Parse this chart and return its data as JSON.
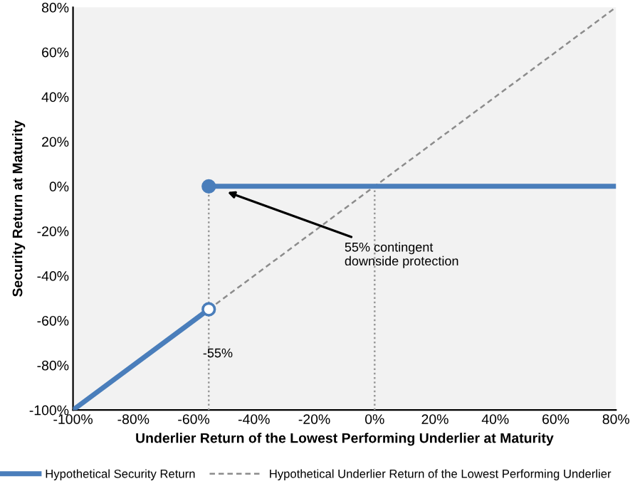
{
  "chart_data": {
    "type": "line",
    "xlabel": "Underlier Return of the Lowest Performing Underlier at Maturity",
    "ylabel": "Security Return at Maturity",
    "xlim": [
      -100,
      80
    ],
    "xticks": [
      {
        "value": -100,
        "label": "-100%"
      },
      {
        "value": -80,
        "label": "-80%"
      },
      {
        "value": -60,
        "label": "-60%"
      },
      {
        "value": -40,
        "label": "-40%"
      },
      {
        "value": -20,
        "label": "-20%"
      },
      {
        "value": 0,
        "label": "0%"
      },
      {
        "value": 20,
        "label": "20%"
      },
      {
        "value": 40,
        "label": "40%"
      },
      {
        "value": 60,
        "label": "60%"
      },
      {
        "value": 80,
        "label": "80%"
      }
    ],
    "ylim": [
      -100,
      80
    ],
    "yticks": [
      {
        "value": -100,
        "label": "-100%"
      },
      {
        "value": -80,
        "label": "-80%"
      },
      {
        "value": -60,
        "label": "-60%"
      },
      {
        "value": -40,
        "label": "-40%"
      },
      {
        "value": -20,
        "label": "-20%"
      },
      {
        "value": 0,
        "label": "0%"
      },
      {
        "value": 20,
        "label": "20%"
      },
      {
        "value": 40,
        "label": "40%"
      },
      {
        "value": 60,
        "label": "60%"
      },
      {
        "value": 80,
        "label": "80%"
      }
    ],
    "series": [
      {
        "x": [
          -55,
          -55
        ],
        "values": [
          -100,
          0
        ],
        "color": "#999999",
        "line_style": "dotted"
      },
      {
        "x": [
          0,
          0
        ],
        "values": [
          -100,
          0
        ],
        "color": "#999999",
        "line_style": "dotted"
      },
      {
        "name": "Hypothetical Underlier Return of the Lowest Performing Underlier",
        "x": [
          -100,
          80
        ],
        "values": [
          -100,
          80
        ],
        "color": "#8c8c8c",
        "line_style": "dashed"
      },
      {
        "name": "Hypothetical Security Return",
        "x": [
          -100,
          -55
        ],
        "values": [
          -100,
          -55
        ],
        "color": "#4a7ebb",
        "line_style": "solid"
      },
      {
        "x": [
          -55,
          80
        ],
        "values": [
          0,
          0
        ],
        "color": "#4a7ebb",
        "line_style": "solid"
      },
      {
        "type": "scatter",
        "x": [
          -55
        ],
        "values": [
          0
        ],
        "color": "#4a7ebb",
        "colors": [
          "#4a7ebb"
        ],
        "marker": "circle"
      },
      {
        "type": "scatter",
        "x": [
          -55
        ],
        "values": [
          -55
        ],
        "color": "#4a7ebb",
        "colors": [
          "#ffffff"
        ],
        "marker": "circle"
      }
    ],
    "annotations": [
      {
        "text": "55% contingent\ndownside protection",
        "x": -50,
        "y": -2
      },
      {
        "text": "-55%",
        "x": -55,
        "y": -75
      }
    ],
    "legend": "bottom",
    "grid": false
  }
}
